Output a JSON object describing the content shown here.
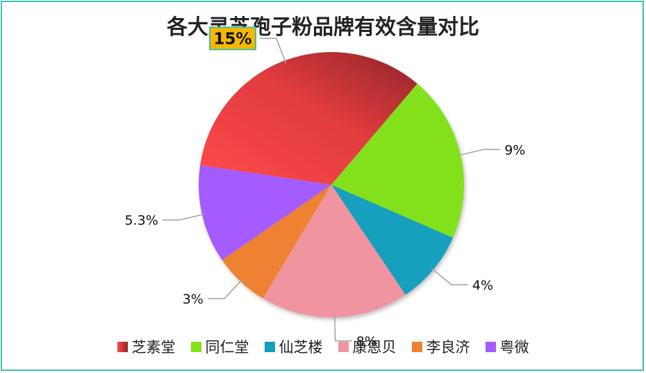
{
  "chart_data": {
    "type": "pie",
    "title": "各大灵芝孢子粉品牌有效含量对比",
    "categories": [
      "芝素堂",
      "同仁堂",
      "仙芝楼",
      "康恩贝",
      "李良济",
      "粤微"
    ],
    "values": [
      15,
      9,
      4,
      8,
      3,
      5.3
    ],
    "labels": [
      "15%",
      "9%",
      "4%",
      "8%",
      "3%",
      "5.3%"
    ],
    "colors": [
      "#e8413f",
      "#83e11a",
      "#12a0be",
      "#f095a0",
      "#ee8130",
      "#a55cfe"
    ],
    "highlight_index": 0,
    "legend_position": "bottom"
  }
}
